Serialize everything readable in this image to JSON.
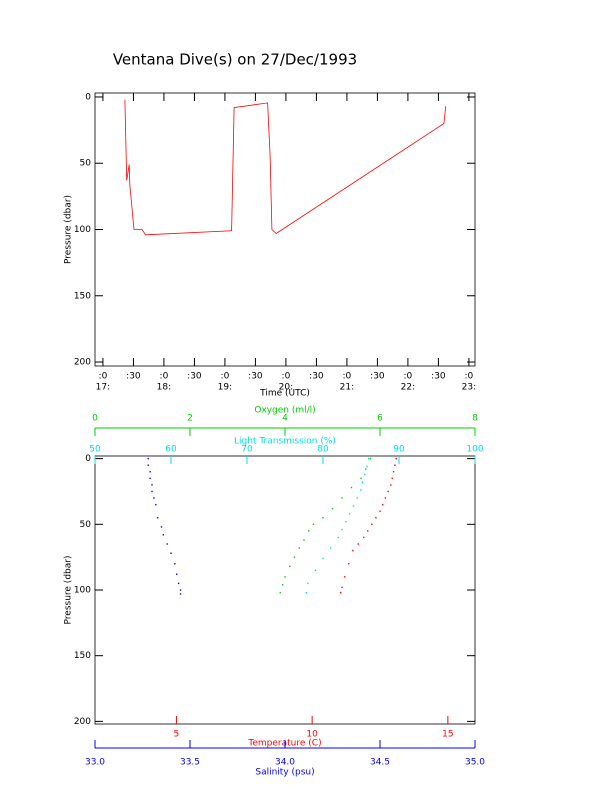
{
  "chart_data": [
    {
      "type": "line",
      "title": "Ventana Dive(s) on 27/Dec/1993",
      "xlabel": "Time (UTC)",
      "ylabel": "Pressure (dbar)",
      "xlim": [
        16.87,
        23.1
      ],
      "ylim": [
        -3,
        203
      ],
      "yticks": [
        0,
        50,
        100,
        150,
        200
      ],
      "xticks": [
        {
          "value": 17,
          "label": [
            ":0",
            "17:"
          ]
        },
        {
          "value": 17.5,
          "label": [
            ":30"
          ]
        },
        {
          "value": 18,
          "label": [
            ":0",
            "18:"
          ]
        },
        {
          "value": 18.5,
          "label": [
            ":30"
          ]
        },
        {
          "value": 19,
          "label": [
            ":0",
            "19:"
          ]
        },
        {
          "value": 19.5,
          "label": [
            ":30"
          ]
        },
        {
          "value": 20,
          "label": [
            ":0",
            "20:"
          ]
        },
        {
          "value": 20.5,
          "label": [
            ":30"
          ]
        },
        {
          "value": 21,
          "label": [
            ":0",
            "21:"
          ]
        },
        {
          "value": 21.5,
          "label": [
            ":30"
          ]
        },
        {
          "value": 22,
          "label": [
            ":0",
            "22:"
          ]
        },
        {
          "value": 22.5,
          "label": [
            ":30"
          ]
        },
        {
          "value": 23,
          "label": [
            ":0",
            "23:"
          ]
        }
      ],
      "x": [
        17.36,
        17.39,
        17.43,
        17.44,
        17.51,
        17.64,
        17.7,
        19.11,
        19.15,
        19.7,
        19.74,
        19.77,
        19.84,
        22.59,
        22.62
      ],
      "series": [
        {
          "color": "#ff0000",
          "values": [
            2,
            63,
            51,
            66,
            100,
            100,
            104,
            101,
            8,
            4.5,
            44,
            100,
            103,
            20,
            7
          ]
        }
      ]
    },
    {
      "type": "scatter",
      "ylabel": "Pressure (dbar)",
      "ylim": [
        -2,
        202
      ],
      "yticks": [
        0,
        50,
        100,
        150,
        200
      ],
      "x_axes": [
        {
          "label": "Temperature (C)",
          "color": "#ff0000",
          "xlim": [
            2,
            16
          ],
          "xticks": [
            5,
            10,
            15
          ]
        },
        {
          "label": "Salinity (psu)",
          "color": "#0000ff",
          "xlim": [
            33,
            35
          ],
          "xticks": [
            {
              "value": 33,
              "label": "33.0"
            },
            {
              "value": 33.5,
              "label": "33.5"
            },
            {
              "value": 34,
              "label": "34.0"
            },
            {
              "value": 34.5,
              "label": "34.5"
            },
            {
              "value": 35,
              "label": "35.0"
            }
          ]
        },
        {
          "label": "Oxygen (ml/l)",
          "color": "#00cc00",
          "xlim": [
            0,
            8
          ],
          "xticks": [
            0,
            2,
            4,
            6,
            8
          ]
        },
        {
          "label": "Light Transmission (%)",
          "color": "#00e0e0",
          "xlim": [
            50,
            100
          ],
          "xticks": [
            50,
            60,
            70,
            80,
            90,
            100
          ]
        }
      ],
      "series": [
        {
          "axis": 0,
          "x": [
            13.1,
            13.05,
            13,
            12.95,
            12.9,
            12.8,
            12.7,
            12.6,
            12.5,
            12.35,
            12.2,
            12.05,
            11.9,
            11.7,
            11.5,
            11.35,
            11.2,
            11.1,
            11.05
          ],
          "y": [
            0,
            5,
            10,
            15,
            20,
            25,
            30,
            35,
            40,
            45,
            50,
            55,
            60,
            65,
            70,
            80,
            90,
            98,
            102
          ]
        },
        {
          "axis": 1,
          "x": [
            33.28,
            33.28,
            33.29,
            33.29,
            33.3,
            33.3,
            33.31,
            33.32,
            33.33,
            33.35,
            33.36,
            33.38,
            33.4,
            33.42,
            33.43,
            33.44,
            33.45,
            33.45
          ],
          "y": [
            0,
            5,
            10,
            15,
            20,
            25,
            30,
            35,
            45,
            52,
            58,
            65,
            72,
            80,
            88,
            95,
            100,
            103
          ]
        },
        {
          "axis": 2,
          "x": [
            5.8,
            5.7,
            5.6,
            5.4,
            5.2,
            5,
            4.8,
            4.6,
            4.5,
            4.4,
            4.3,
            4.2,
            4.1,
            4,
            3.95,
            3.9
          ],
          "y": [
            0,
            8,
            15,
            22,
            30,
            38,
            45,
            50,
            55,
            62,
            68,
            75,
            82,
            90,
            96,
            102
          ]
        },
        {
          "axis": 3,
          "x": [
            86,
            85.8,
            85.5,
            85.2,
            85,
            84.5,
            84,
            83.5,
            83,
            82.5,
            82,
            81,
            80,
            79,
            78,
            77.8
          ],
          "y": [
            0,
            6,
            12,
            18,
            24,
            30,
            36,
            42,
            48,
            54,
            60,
            68,
            76,
            85,
            95,
            102
          ]
        }
      ]
    }
  ]
}
